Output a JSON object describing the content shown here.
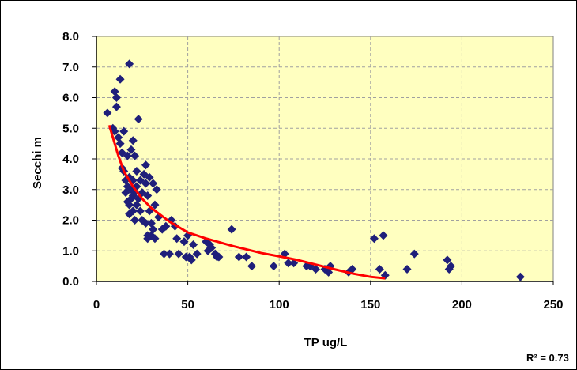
{
  "chart_data": {
    "type": "scatter",
    "xlabel": "TP ug/L",
    "ylabel": "Secchi m",
    "xlim": [
      0,
      250
    ],
    "ylim": [
      0,
      8
    ],
    "xticks": [
      "0",
      "50",
      "100",
      "150",
      "200",
      "250"
    ],
    "yticks": [
      "0.0",
      "1.0",
      "2.0",
      "3.0",
      "4.0",
      "5.0",
      "6.0",
      "7.0",
      "8.0"
    ],
    "grid": true,
    "legend": "none",
    "annotation": "R² = 0.73",
    "colors": {
      "points": "#1f1f7a",
      "trend": "#ff0000",
      "plot_bg": "#ffffc0",
      "grid": "#a0a0a0"
    },
    "series": [
      {
        "values": [
          [
            6,
            5.5
          ],
          [
            9,
            5.0
          ],
          [
            10,
            4.9
          ],
          [
            10,
            6.2
          ],
          [
            11,
            6.0
          ],
          [
            11,
            5.7
          ],
          [
            12,
            4.7
          ],
          [
            13,
            4.5
          ],
          [
            13,
            6.6
          ],
          [
            14,
            4.2
          ],
          [
            14,
            3.7
          ],
          [
            15,
            3.6
          ],
          [
            15,
            4.9
          ],
          [
            16,
            3.3
          ],
          [
            16,
            2.9
          ],
          [
            17,
            4.1
          ],
          [
            17,
            3.1
          ],
          [
            17,
            2.6
          ],
          [
            18,
            7.1
          ],
          [
            18,
            3.4
          ],
          [
            18,
            2.5
          ],
          [
            18,
            2.2
          ],
          [
            19,
            4.3
          ],
          [
            19,
            3.0
          ],
          [
            19,
            2.7
          ],
          [
            20,
            4.6
          ],
          [
            20,
            3.3
          ],
          [
            20,
            2.8
          ],
          [
            20,
            2.3
          ],
          [
            21,
            4.1
          ],
          [
            21,
            2.9
          ],
          [
            21,
            2.0
          ],
          [
            22,
            3.6
          ],
          [
            22,
            3.1
          ],
          [
            22,
            2.5
          ],
          [
            23,
            2.7
          ],
          [
            23,
            5.3
          ],
          [
            24,
            3.3
          ],
          [
            24,
            2.3
          ],
          [
            25,
            2.9
          ],
          [
            25,
            2.0
          ],
          [
            26,
            3.5
          ],
          [
            27,
            3.8
          ],
          [
            27,
            3.2
          ],
          [
            27,
            1.9
          ],
          [
            28,
            2.8
          ],
          [
            28,
            1.5
          ],
          [
            28,
            1.4
          ],
          [
            29,
            3.4
          ],
          [
            29,
            2.3
          ],
          [
            30,
            1.9
          ],
          [
            30,
            1.5
          ],
          [
            31,
            3.2
          ],
          [
            31,
            1.7
          ],
          [
            32,
            2.5
          ],
          [
            32,
            1.4
          ],
          [
            33,
            3.0
          ],
          [
            34,
            2.1
          ],
          [
            36,
            1.7
          ],
          [
            37,
            0.9
          ],
          [
            38,
            1.8
          ],
          [
            40,
            0.9
          ],
          [
            41,
            2.0
          ],
          [
            43,
            1.8
          ],
          [
            44,
            1.4
          ],
          [
            45,
            0.9
          ],
          [
            48,
            1.3
          ],
          [
            49,
            0.8
          ],
          [
            50,
            1.5
          ],
          [
            51,
            0.8
          ],
          [
            52,
            0.7
          ],
          [
            53,
            1.2
          ],
          [
            55,
            0.9
          ],
          [
            60,
            1.3
          ],
          [
            61,
            1.0
          ],
          [
            62,
            1.2
          ],
          [
            63,
            1.1
          ],
          [
            65,
            0.9
          ],
          [
            66,
            0.8
          ],
          [
            67,
            0.8
          ],
          [
            74,
            1.7
          ],
          [
            78,
            0.8
          ],
          [
            82,
            0.8
          ],
          [
            85,
            0.5
          ],
          [
            97,
            0.5
          ],
          [
            103,
            0.9
          ],
          [
            105,
            0.6
          ],
          [
            108,
            0.6
          ],
          [
            115,
            0.5
          ],
          [
            117,
            0.5
          ],
          [
            120,
            0.4
          ],
          [
            125,
            0.4
          ],
          [
            127,
            0.3
          ],
          [
            128,
            0.5
          ],
          [
            138,
            0.3
          ],
          [
            140,
            0.4
          ],
          [
            152,
            1.4
          ],
          [
            155,
            0.4
          ],
          [
            157,
            1.5
          ],
          [
            158,
            0.2
          ],
          [
            170,
            0.4
          ],
          [
            174,
            0.9
          ],
          [
            192,
            0.7
          ],
          [
            193,
            0.4
          ],
          [
            194,
            0.5
          ],
          [
            232,
            0.15
          ]
        ]
      }
    ],
    "trend": {
      "type": "power",
      "values": [
        [
          7,
          5.1
        ],
        [
          10,
          4.5
        ],
        [
          12,
          4.1
        ],
        [
          15,
          3.6
        ],
        [
          20,
          3.1
        ],
        [
          25,
          2.7
        ],
        [
          30,
          2.4
        ],
        [
          40,
          1.95
        ],
        [
          50,
          1.6
        ],
        [
          60,
          1.4
        ],
        [
          75,
          1.15
        ],
        [
          90,
          0.93
        ],
        [
          100,
          0.82
        ],
        [
          110,
          0.7
        ],
        [
          120,
          0.55
        ],
        [
          130,
          0.4
        ],
        [
          140,
          0.26
        ],
        [
          150,
          0.15
        ],
        [
          158,
          0.1
        ]
      ]
    }
  }
}
